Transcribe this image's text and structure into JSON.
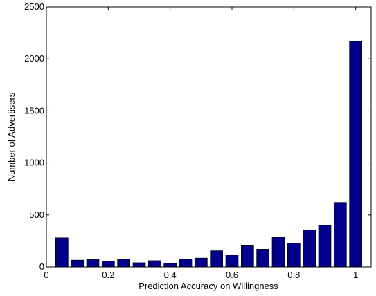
{
  "chart_data": {
    "type": "bar",
    "title": "",
    "xlabel": "Prediction Accuracy on Willingness",
    "ylabel": "Number of Advertisers",
    "xlim": [
      0,
      1.05
    ],
    "ylim": [
      0,
      2500
    ],
    "x": [
      0.05,
      0.1,
      0.15,
      0.2,
      0.25,
      0.3,
      0.35,
      0.4,
      0.45,
      0.5,
      0.55,
      0.6,
      0.65,
      0.7,
      0.75,
      0.8,
      0.85,
      0.9,
      0.95,
      1.0
    ],
    "values": [
      280,
      65,
      70,
      55,
      75,
      40,
      60,
      35,
      75,
      85,
      155,
      115,
      210,
      170,
      285,
      230,
      355,
      400,
      620,
      2170
    ],
    "xticks": [
      0,
      0.2,
      0.4,
      0.6,
      0.8,
      1
    ],
    "xtick_labels": [
      "0",
      "0.2",
      "0.4",
      "0.6",
      "0.8",
      "1"
    ],
    "yticks": [
      0,
      500,
      1000,
      1500,
      2000,
      2500
    ],
    "ytick_labels": [
      "0",
      "500",
      "1000",
      "1500",
      "2000",
      "2500"
    ],
    "grid": false,
    "bar_color": "#00008B"
  }
}
